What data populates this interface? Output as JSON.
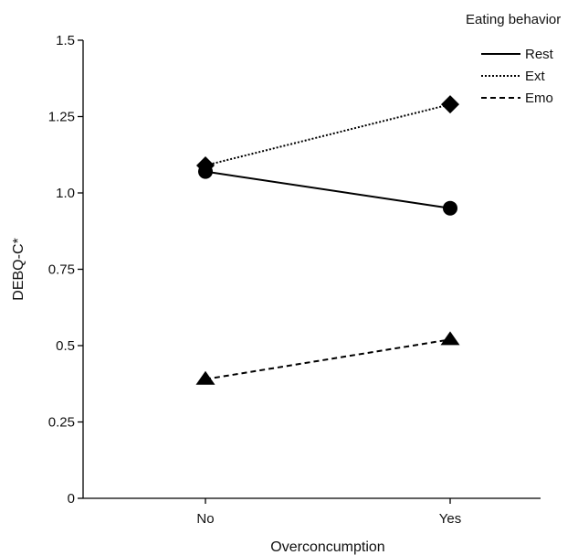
{
  "chart_data": {
    "type": "line",
    "xlabel": "Overconcumption",
    "ylabel": "DEBQ-C*",
    "categories": [
      "No",
      "Yes"
    ],
    "ylim": [
      0,
      1.5
    ],
    "yticks": [
      0,
      0.25,
      0.5,
      0.75,
      1.0,
      1.25,
      1.5
    ],
    "ytick_labels": [
      "0",
      "0.25",
      "0.5",
      "0.75",
      "1.0",
      "1.25",
      "1.5"
    ],
    "grid": false,
    "legend_title": "Eating behavior",
    "legend_position": "top-right",
    "series": [
      {
        "name": "Rest",
        "values": [
          1.07,
          0.95
        ],
        "line_style": "solid",
        "marker": "circle"
      },
      {
        "name": "Ext",
        "values": [
          1.09,
          1.29
        ],
        "line_style": "dotted",
        "marker": "diamond"
      },
      {
        "name": "Emo",
        "values": [
          0.39,
          0.52
        ],
        "line_style": "dashed",
        "marker": "triangle"
      }
    ],
    "colors": {
      "ink": "#000000"
    }
  }
}
